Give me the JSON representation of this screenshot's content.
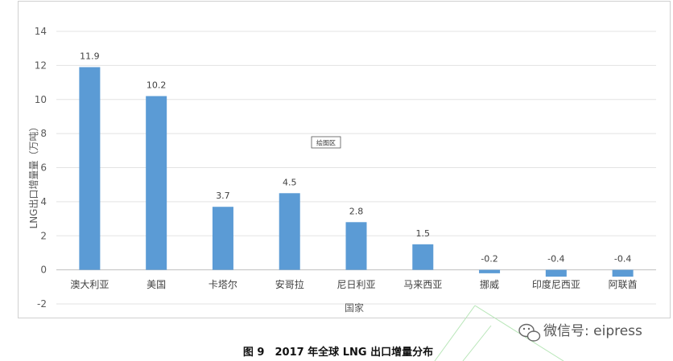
{
  "chart_data": {
    "type": "bar",
    "categories": [
      "澳大利亚",
      "美国",
      "卡塔尔",
      "安哥拉",
      "尼日利亚",
      "马来西亚",
      "挪威",
      "印度尼西亚",
      "阿联酋"
    ],
    "values": [
      11.9,
      10.2,
      3.7,
      4.5,
      2.8,
      1.5,
      -0.2,
      -0.4,
      -0.4
    ],
    "data_labels": [
      "11.9",
      "10.2",
      "3.7",
      "4.5",
      "2.8",
      "1.5",
      "-0.2",
      "-0.4",
      "-0.4"
    ],
    "xlabel": "国家",
    "ylabel": "LNG出口增量量（万吨）",
    "ylim": [
      -2,
      14
    ],
    "yticks": [
      "14",
      "12",
      "10",
      "8",
      "6",
      "4",
      "2",
      "0",
      "-2"
    ],
    "bar_color": "#5B9BD5",
    "grid": true,
    "legend": "none"
  },
  "caption": "图 9　2017 年全球 LNG 出口增量分布",
  "tooltip": "绘图区",
  "watermark": "微信号: eipress"
}
